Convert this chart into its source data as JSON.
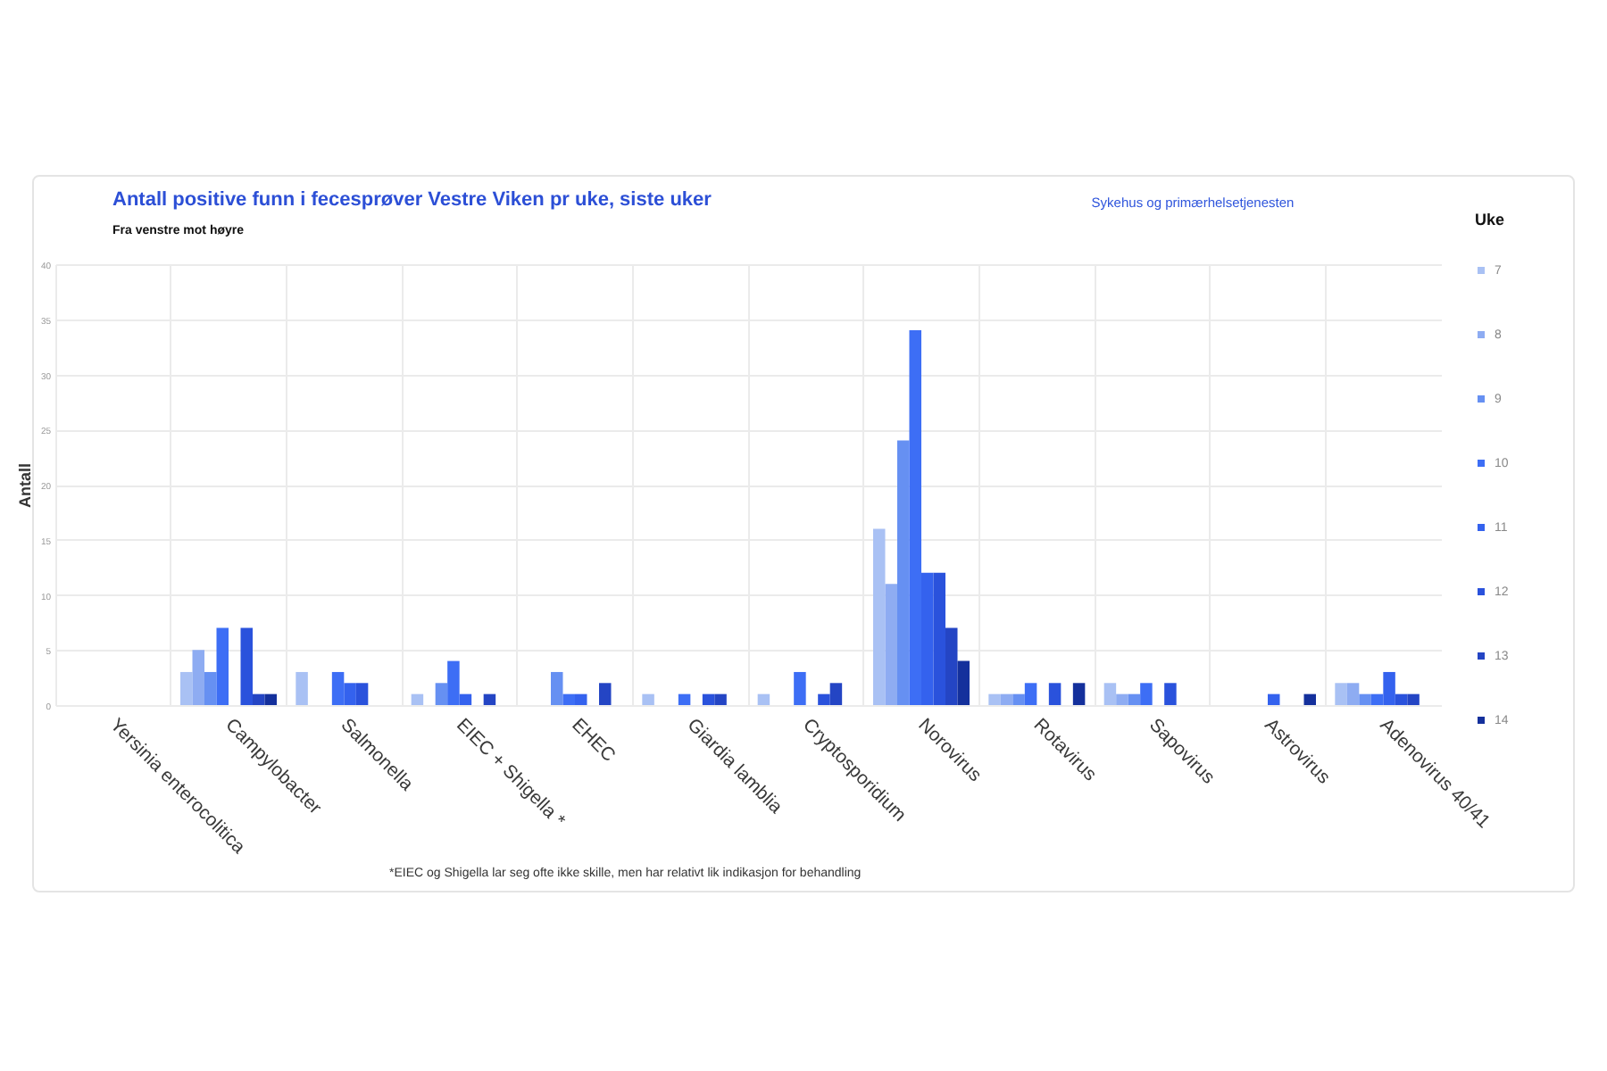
{
  "chart_data": {
    "type": "bar",
    "title": "Antall positive funn i fecesprøver Vestre Viken pr uke, siste uker",
    "subtitle": "Fra venstre mot høyre",
    "ylabel": "Antall",
    "legend_title": "Uke",
    "annotations": [
      "Sykehus og primærhelsetjenesten",
      "*EIEC og Shigella lar seg ofte ikke skille, men har relativt lik indikasjon for behandling"
    ],
    "categories": [
      "Yersinia enterocolitica",
      "Campylobacter",
      "Salmonella",
      "EIEC + Shigella *",
      "EHEC",
      "Giardia lamblia",
      "Cryptosporidium",
      "Norovirus",
      "Rotavirus",
      "Sapovirus",
      "Astrovirus",
      "Adenovirus 40/41"
    ],
    "series": [
      {
        "name": "7",
        "color": "#a9c1f4",
        "values": [
          0,
          3,
          3,
          1,
          0,
          1,
          1,
          16,
          1,
          2,
          0,
          2
        ]
      },
      {
        "name": "8",
        "color": "#8eacf2",
        "values": [
          0,
          5,
          0,
          0,
          0,
          0,
          0,
          11,
          1,
          1,
          0,
          2
        ]
      },
      {
        "name": "9",
        "color": "#6690f2",
        "values": [
          0,
          3,
          0,
          2,
          3,
          0,
          0,
          24,
          1,
          1,
          0,
          1
        ]
      },
      {
        "name": "10",
        "color": "#3d6ef5",
        "values": [
          0,
          7,
          3,
          4,
          1,
          1,
          3,
          34,
          2,
          2,
          0,
          1
        ]
      },
      {
        "name": "11",
        "color": "#3462ee",
        "values": [
          0,
          0,
          2,
          1,
          1,
          0,
          0,
          12,
          0,
          0,
          1,
          3
        ]
      },
      {
        "name": "12",
        "color": "#2a52dc",
        "values": [
          0,
          7,
          2,
          0,
          0,
          1,
          1,
          12,
          2,
          2,
          0,
          1
        ]
      },
      {
        "name": "13",
        "color": "#2445c4",
        "values": [
          0,
          1,
          0,
          1,
          2,
          1,
          2,
          7,
          0,
          0,
          0,
          1
        ]
      },
      {
        "name": "14",
        "color": "#14309c",
        "values": [
          0,
          1,
          0,
          0,
          0,
          0,
          0,
          4,
          2,
          0,
          1,
          0
        ]
      }
    ],
    "ylim": [
      0,
      40
    ],
    "yticks": [
      0,
      5,
      10,
      15,
      20,
      25,
      30,
      35,
      40
    ],
    "grid": true,
    "legend": "right"
  }
}
